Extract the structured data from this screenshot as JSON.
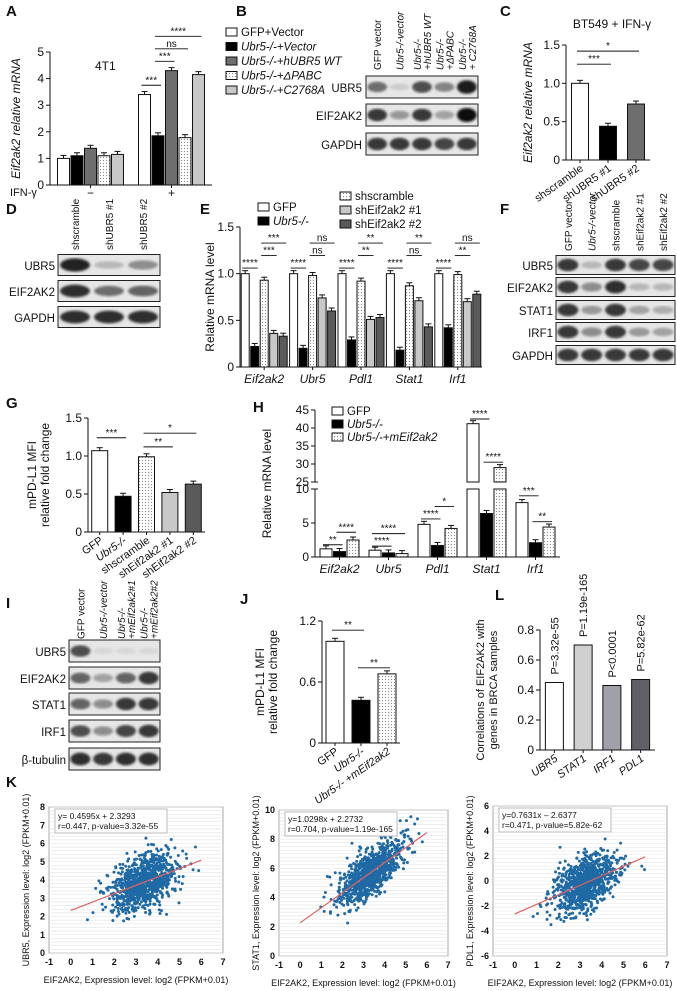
{
  "panel_letters": {
    "A": "A",
    "B": "B",
    "C": "C",
    "D": "D",
    "E": "E",
    "F": "F",
    "G": "G",
    "H": "H",
    "I": "I",
    "J": "J",
    "K": "K",
    "L": "L"
  },
  "chart_data": [
    {
      "id": "A",
      "type": "bar",
      "title": "4T1",
      "ylabel": "Eif2ak2 relative mRNA",
      "ylim": [
        0,
        5
      ],
      "yticks": [
        "0",
        "1",
        "2",
        "3",
        "4",
        "5"
      ],
      "xgroup_label": "IFN-γ",
      "groups": [
        "−",
        "+"
      ],
      "series": [
        {
          "name": "GFP+Vector",
          "fill": "#ffffff",
          "values": [
            1.0,
            3.4
          ]
        },
        {
          "name": "Ubr5-/-+Vector",
          "fill": "#000000",
          "values": [
            1.1,
            1.85
          ]
        },
        {
          "name": "Ubr5-/-+hUBR5 WT",
          "fill": "#6e6e6e",
          "values": [
            1.38,
            4.3
          ]
        },
        {
          "name": "Ubr5-/-+ΔPABC",
          "fill": "dots",
          "values": [
            1.1,
            1.78
          ]
        },
        {
          "name": "Ubr5-/-+C2768A",
          "fill": "#c8c8c8",
          "values": [
            1.15,
            4.15
          ]
        }
      ],
      "significance": [
        {
          "label": "***",
          "between": [
            5,
            6
          ],
          "y": 3.75
        },
        {
          "label": "***",
          "between": [
            6,
            7
          ],
          "y": 4.65
        },
        {
          "label": "ns",
          "between": [
            6,
            8
          ],
          "y": 5.0
        },
        {
          "label": "****",
          "between": [
            6,
            9
          ],
          "y": 5.35
        }
      ]
    },
    {
      "id": "C",
      "type": "bar",
      "title": "BT549 + IFN-γ",
      "ylabel": "Eif2ak2 relative mRNA",
      "ylim": [
        0,
        1.5
      ],
      "yticks": [
        "0",
        "0.5",
        "1.0",
        "1.5"
      ],
      "categories": [
        "shscramble",
        "shUBR5 #1",
        "shUBR5 #2"
      ],
      "fills": [
        "#ffffff",
        "#000000",
        "#6e6e6e"
      ],
      "values": [
        1.0,
        0.44,
        0.73
      ],
      "significance": [
        {
          "label": "***",
          "between": [
            0,
            1
          ],
          "y": 1.25
        },
        {
          "label": "*",
          "between": [
            0,
            2
          ],
          "y": 1.42
        }
      ]
    },
    {
      "id": "E",
      "type": "bar",
      "ylabel": "Relative mRNA  level",
      "ylim": [
        0,
        1.5
      ],
      "yticks": [
        "0",
        "0.5",
        "1.0",
        "1.5"
      ],
      "groups": [
        "Eif2ak2",
        "Ubr5",
        "Pdl1",
        "Stat1",
        "Irf1"
      ],
      "series": [
        {
          "name": "GFP",
          "fill": "#ffffff",
          "values": [
            1.0,
            1.0,
            1.0,
            1.0,
            1.0
          ]
        },
        {
          "name": "Ubr5-/-",
          "fill": "#000000",
          "values": [
            0.22,
            0.2,
            0.29,
            0.18,
            0.42
          ]
        },
        {
          "name": "shscramble",
          "fill": "dots",
          "values": [
            0.93,
            0.98,
            0.92,
            0.87,
            0.99
          ]
        },
        {
          "name": "shEif2ak2 #1",
          "fill": "#c8c8c8",
          "values": [
            0.36,
            0.74,
            0.51,
            0.71,
            0.7
          ]
        },
        {
          "name": "shEif2ak2 #2",
          "fill": "#5a5a5a",
          "values": [
            0.33,
            0.6,
            0.53,
            0.43,
            0.78
          ]
        }
      ],
      "significance": [
        {
          "label": "****",
          "between": [
            0,
            1
          ],
          "y": 1.06
        },
        {
          "label": "***",
          "between": [
            2,
            3
          ],
          "y": 1.06
        },
        {
          "label": "***",
          "between": [
            2,
            4
          ],
          "y": 1.18
        },
        {
          "label": "****",
          "between": [
            5,
            6
          ],
          "y": 1.06
        },
        {
          "label": "ns",
          "between": [
            7,
            8
          ],
          "y": 1.06
        },
        {
          "label": "ns",
          "between": [
            7,
            9
          ],
          "y": 1.18
        },
        {
          "label": "****",
          "between": [
            10,
            11
          ],
          "y": 1.06
        },
        {
          "label": "**",
          "between": [
            12,
            13
          ],
          "y": 1.06
        },
        {
          "label": "**",
          "between": [
            12,
            14
          ],
          "y": 1.18
        },
        {
          "label": "****",
          "between": [
            15,
            16
          ],
          "y": 1.06
        },
        {
          "label": "ns",
          "between": [
            17,
            18
          ],
          "y": 0.96
        },
        {
          "label": "**",
          "between": [
            17,
            19
          ],
          "y": 1.18
        },
        {
          "label": "****",
          "between": [
            20,
            21
          ],
          "y": 1.06
        },
        {
          "label": "**",
          "between": [
            22,
            23
          ],
          "y": 1.06
        },
        {
          "label": "ns",
          "between": [
            22,
            24
          ],
          "y": 1.18
        }
      ]
    },
    {
      "id": "G",
      "type": "bar",
      "ylabel": "mPD-L1 MFI relative fold change",
      "ylabel_lines": [
        "mPD-L1 MFI",
        "relative fold change"
      ],
      "ylim": [
        0,
        1.5
      ],
      "yticks": [
        "0",
        "0.5",
        "1.0",
        "1.5"
      ],
      "categories": [
        "GFP",
        "Ubr5-/-",
        "shscramble",
        "shEif2ak2 #1",
        "shEif2ak2 #2"
      ],
      "fills": [
        "#ffffff",
        "#000000",
        "dots",
        "#c8c8c8",
        "#5a5a5a"
      ],
      "values": [
        1.07,
        0.47,
        0.99,
        0.52,
        0.63
      ],
      "significance": [
        {
          "label": "***",
          "between": [
            0,
            1
          ],
          "y": 1.24
        },
        {
          "label": "**",
          "between": [
            2,
            3
          ],
          "y": 1.12
        },
        {
          "label": "*",
          "between": [
            2,
            4
          ],
          "y": 1.3
        }
      ]
    },
    {
      "id": "H",
      "type": "bar",
      "ylabel": "Relative mRNA  level",
      "ylim": [
        0,
        45
      ],
      "axis_break": [
        10,
        25
      ],
      "yticks": [
        "0",
        "5",
        "10",
        "25",
        "30",
        "35",
        "40",
        "45"
      ],
      "groups": [
        "Eif2ak2",
        "Ubr5",
        "Pdl1",
        "Stat1",
        "Irf1"
      ],
      "series": [
        {
          "name": "GFP",
          "fill": "#ffffff",
          "values": [
            1.2,
            1.0,
            4.8,
            41.2,
            8.0
          ]
        },
        {
          "name": "Ubr5-/-",
          "fill": "#000000",
          "values": [
            0.8,
            0.6,
            1.7,
            6.4,
            2.1
          ]
        },
        {
          "name": "Ubr5-/-+mEif2ak2",
          "fill": "dots",
          "values": [
            2.5,
            0.5,
            4.2,
            29.0,
            4.4
          ]
        }
      ],
      "significance": [
        {
          "label": "**",
          "between": [
            0,
            1
          ],
          "y": 1.8
        },
        {
          "label": "****",
          "between": [
            1,
            2
          ],
          "y": 3.2
        },
        {
          "label": "****",
          "between": [
            3,
            4
          ],
          "y": 1.6
        },
        {
          "label": "****",
          "between": [
            3,
            5
          ],
          "y": 3.0
        },
        {
          "label": "****",
          "between": [
            6,
            7
          ],
          "y": 5.6
        },
        {
          "label": "*",
          "between": [
            7,
            8
          ],
          "y": 4.9
        },
        {
          "label": "****",
          "between": [
            9,
            10
          ],
          "y": 42.5
        },
        {
          "label": "****",
          "between": [
            10,
            11
          ],
          "y": 30.5
        },
        {
          "label": "***",
          "between": [
            12,
            13
          ],
          "y": 9.0
        },
        {
          "label": "**",
          "between": [
            13,
            14
          ],
          "y": 5.2
        }
      ]
    },
    {
      "id": "J",
      "type": "bar",
      "ylabel": "mPD-L1 MFI relative fold change",
      "ylabel_lines": [
        "mPD-L1 MFI",
        "relative fold change"
      ],
      "ylim": [
        0,
        1.2
      ],
      "yticks": [
        "0",
        "0.6",
        "1.2"
      ],
      "categories": [
        "GFP",
        "Ubr5-/-",
        "Ubr5-/- +mEif2ak2"
      ],
      "fills": [
        "#ffffff",
        "#000000",
        "dots"
      ],
      "values": [
        1.0,
        0.42,
        0.68
      ],
      "significance": [
        {
          "label": "**",
          "between": [
            0,
            1
          ],
          "y": 1.11
        },
        {
          "label": "**",
          "between": [
            1,
            2
          ],
          "y": 0.74
        }
      ]
    },
    {
      "id": "L",
      "type": "bar",
      "ylabel": "Correlations of EIF2AK2 with genes in BRCA samples",
      "ylabel_lines": [
        "Correlations of EIF2AK2 with",
        "genes in BRCA samples"
      ],
      "ylim": [
        0,
        0.8
      ],
      "yticks": [
        "0",
        "0.2",
        "0.4",
        "0.6",
        "0.8"
      ],
      "categories": [
        "UBR5",
        "STAT1",
        "IRF1",
        "PDL1"
      ],
      "fills": [
        "#ffffff",
        "#d0d0d0",
        "#a0a0a8",
        "#606066"
      ],
      "values": [
        0.45,
        0.7,
        0.43,
        0.47
      ],
      "bar_labels": [
        "P=3.32e-55",
        "P=1.19e-165",
        "P<0.0001",
        "P=5.82e-62"
      ]
    },
    {
      "id": "K1",
      "type": "scatter",
      "xlabel": "EIF2AK2, Expression level: log2 (FPKM+0.01)",
      "ylabel": "UBR5, Expression level: log2 (FPKM+0.01)",
      "xlim": [
        -1,
        7
      ],
      "ylim": [
        0,
        8
      ],
      "xticks": [
        "-1",
        "0",
        "1",
        "2",
        "3",
        "4",
        "5",
        "6",
        "7"
      ],
      "yticks": [
        "0",
        "1",
        "2",
        "3",
        "4",
        "5",
        "6",
        "7",
        "8"
      ],
      "slope": 0.4595,
      "intercept": 2.3293,
      "r": 0.447,
      "annotation": [
        "y= 0.4595x + 2.3293",
        "r=0.447, p-value=3.32e-55"
      ],
      "point_color": "#1f6aa5",
      "line_color": "#e06060"
    },
    {
      "id": "K2",
      "type": "scatter",
      "xlabel": "EIF2AK2, Expression level: log2 (FPKM+0.01)",
      "ylabel": "STAT1, Expression level: log2 (FPKM+0.01)",
      "xlim": [
        -1,
        7
      ],
      "ylim": [
        0,
        10
      ],
      "xticks": [
        "-1",
        "0",
        "1",
        "2",
        "3",
        "4",
        "5",
        "6",
        "7"
      ],
      "yticks": [
        "0",
        "2",
        "4",
        "6",
        "8",
        "10"
      ],
      "slope": 1.0298,
      "intercept": 2.2732,
      "r": 0.704,
      "annotation": [
        "y=1.0298x + 2.2732",
        "r=0.704, p-value=1.19e-165"
      ],
      "point_color": "#1f6aa5",
      "line_color": "#e06060"
    },
    {
      "id": "K3",
      "type": "scatter",
      "xlabel": "EIF2AK2, Expression level: log2 (FPKM+0.01)",
      "ylabel": "PDL1, Expression level: log2 (FPKM+0.01)",
      "xlim": [
        -1,
        7
      ],
      "ylim": [
        -6,
        6
      ],
      "xticks": [
        "-1",
        "0",
        "1",
        "2",
        "3",
        "4",
        "5",
        "6",
        "7"
      ],
      "yticks": [
        "-6",
        "-4",
        "-2",
        "0",
        "2",
        "4",
        "6"
      ],
      "slope": 0.7631,
      "intercept": -2.6377,
      "r": 0.471,
      "annotation": [
        "y=0.7631x – 2.6377",
        "r=0.471, p-value=5.82e-62"
      ],
      "point_color": "#1f6aa5",
      "line_color": "#e06060"
    }
  ],
  "blots": [
    {
      "id": "B",
      "lanes": [
        "GFP vector",
        "Ubr5-/-vector",
        "Ubr5-/- +hUBR5 WT",
        "Ubr5-/- +ΔPABC",
        "Ubr5-/- + C2768A"
      ],
      "rows": [
        {
          "label": "UBR5",
          "bands": [
            0.55,
            0.1,
            0.7,
            0.45,
            0.95
          ]
        },
        {
          "label": "EIF2AK2",
          "bands": [
            0.8,
            0.35,
            0.8,
            0.3,
            1.0
          ]
        },
        {
          "label": "GAPDH",
          "bands": [
            0.8,
            0.8,
            0.8,
            0.75,
            0.8
          ]
        }
      ]
    },
    {
      "id": "D",
      "lanes": [
        "shscramble",
        "shUBR5 #1",
        "shUBR5 #2"
      ],
      "rows": [
        {
          "label": "UBR5",
          "bands": [
            0.9,
            0.2,
            0.4
          ]
        },
        {
          "label": "EIF2AK2",
          "bands": [
            0.85,
            0.55,
            0.6
          ]
        },
        {
          "label": "GAPDH",
          "bands": [
            0.85,
            0.85,
            0.85
          ]
        }
      ]
    },
    {
      "id": "F",
      "lanes": [
        "GFP vector",
        "Ubr5-/-vector",
        "shscramble",
        "shEif2ak2 #1",
        "shEif2ak2 #2"
      ],
      "rows": [
        {
          "label": "UBR5",
          "bands": [
            0.8,
            0.2,
            0.8,
            0.75,
            0.75
          ]
        },
        {
          "label": "EIF2AK2",
          "bands": [
            0.8,
            0.4,
            0.85,
            0.2,
            0.2
          ]
        },
        {
          "label": "STAT1",
          "bands": [
            0.8,
            0.35,
            0.8,
            0.3,
            0.25
          ]
        },
        {
          "label": "IRF1",
          "bands": [
            0.8,
            0.4,
            0.8,
            0.35,
            0.3
          ]
        },
        {
          "label": "GAPDH",
          "bands": [
            0.8,
            0.8,
            0.8,
            0.8,
            0.8
          ]
        }
      ]
    },
    {
      "id": "I",
      "lanes": [
        "GFP vector",
        "Ubr5-/-vector",
        "Ubr5-/- +mEif2ak2#1",
        "Ubr5-/- +mEif2ak2#2"
      ],
      "rows": [
        {
          "label": "UBR5",
          "bands": [
            0.7,
            0.05,
            0.05,
            0.05
          ]
        },
        {
          "label": "EIF2AK2",
          "bands": [
            0.6,
            0.3,
            0.6,
            0.8
          ]
        },
        {
          "label": "STAT1",
          "bands": [
            0.6,
            0.4,
            0.8,
            0.8
          ]
        },
        {
          "label": "IRF1",
          "bands": [
            0.7,
            0.4,
            0.75,
            0.8
          ]
        },
        {
          "label": "β-tubulin",
          "bands": [
            0.85,
            0.8,
            0.85,
            0.85
          ]
        }
      ]
    }
  ]
}
